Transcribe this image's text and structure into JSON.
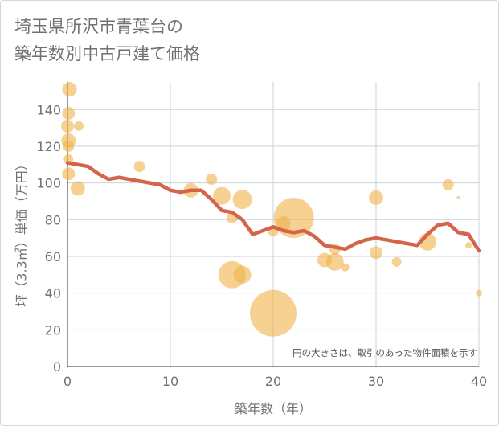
{
  "chart_data": {
    "type": "scatter",
    "title_lines": [
      "埼玉県所沢市青葉台の",
      "築年数別中古戸建て価格"
    ],
    "xlabel": "築年数（年）",
    "ylabel": "坪（3.3㎡）単価（万円）",
    "xlim": [
      0,
      40
    ],
    "ylim": [
      0,
      155
    ],
    "xticks": [
      0,
      10,
      20,
      30,
      40
    ],
    "yticks": [
      0,
      20,
      40,
      60,
      80,
      100,
      120,
      140
    ],
    "grid": true,
    "annotation": "円の大きさは、取引のあった物件面積を示す",
    "colors": {
      "bubble": "#f0b24a",
      "line": "#d4654a",
      "grid": "#c9d2dc",
      "text": "#707070"
    },
    "bubbles": [
      {
        "x": 0.2,
        "y": 151,
        "size": 9
      },
      {
        "x": 0.1,
        "y": 138,
        "size": 8
      },
      {
        "x": 0.0,
        "y": 131,
        "size": 8
      },
      {
        "x": 1.1,
        "y": 131,
        "size": 6
      },
      {
        "x": 0.1,
        "y": 123,
        "size": 9
      },
      {
        "x": 0.1,
        "y": 120,
        "size": 7
      },
      {
        "x": 0.1,
        "y": 113,
        "size": 6
      },
      {
        "x": 0.1,
        "y": 105,
        "size": 8
      },
      {
        "x": 1.0,
        "y": 97,
        "size": 9
      },
      {
        "x": 7.0,
        "y": 109,
        "size": 7
      },
      {
        "x": 12.0,
        "y": 96,
        "size": 9
      },
      {
        "x": 14.0,
        "y": 102,
        "size": 7
      },
      {
        "x": 15.0,
        "y": 93,
        "size": 11
      },
      {
        "x": 17.0,
        "y": 91,
        "size": 12
      },
      {
        "x": 16.0,
        "y": 81,
        "size": 7
      },
      {
        "x": 16.0,
        "y": 50,
        "size": 17
      },
      {
        "x": 17.0,
        "y": 50,
        "size": 11
      },
      {
        "x": 20.0,
        "y": 29,
        "size": 29
      },
      {
        "x": 20.0,
        "y": 74,
        "size": 7
      },
      {
        "x": 21.0,
        "y": 78,
        "size": 9
      },
      {
        "x": 22.0,
        "y": 81,
        "size": 25
      },
      {
        "x": 25.0,
        "y": 58,
        "size": 9
      },
      {
        "x": 26.0,
        "y": 57,
        "size": 11
      },
      {
        "x": 26.0,
        "y": 64,
        "size": 7
      },
      {
        "x": 27.0,
        "y": 54,
        "size": 5
      },
      {
        "x": 30.0,
        "y": 92,
        "size": 9
      },
      {
        "x": 30.0,
        "y": 62,
        "size": 8
      },
      {
        "x": 32.0,
        "y": 57,
        "size": 6
      },
      {
        "x": 35.0,
        "y": 68,
        "size": 11
      },
      {
        "x": 37.0,
        "y": 99,
        "size": 7
      },
      {
        "x": 38.0,
        "y": 92,
        "size": 2
      },
      {
        "x": 39.0,
        "y": 66,
        "size": 4
      },
      {
        "x": 40.0,
        "y": 40,
        "size": 4
      }
    ],
    "trend": {
      "x": [
        0,
        1,
        2,
        3,
        4,
        5,
        6,
        7,
        8,
        9,
        10,
        11,
        12,
        13,
        14,
        15,
        16,
        17,
        18,
        19,
        20,
        21,
        22,
        23,
        24,
        25,
        26,
        27,
        28,
        29,
        30,
        31,
        32,
        33,
        34,
        35,
        36,
        37,
        38,
        39,
        40
      ],
      "y": [
        111,
        110,
        109,
        105,
        102,
        103,
        102,
        101,
        100,
        99,
        96,
        95,
        96,
        96,
        91,
        85,
        84,
        80,
        72,
        74,
        76,
        74,
        73,
        74,
        71,
        66,
        65,
        64,
        67,
        69,
        70,
        69,
        68,
        67,
        66,
        72,
        77,
        78,
        73,
        72,
        63
      ]
    }
  }
}
